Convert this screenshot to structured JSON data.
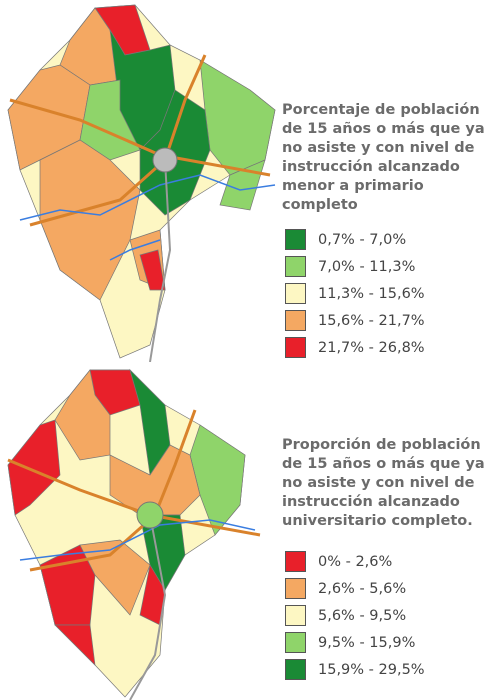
{
  "maps": [
    {
      "title_lines": [
        "Porcentaje de población",
        "de 15 años o más que ya",
        "no asiste y con nivel de",
        "instrucción alcanzado",
        "menor a primario",
        "completo"
      ],
      "legend": [
        {
          "label": "0,7% - 7,0%",
          "color": "#1a8a35"
        },
        {
          "label": "7,0% - 11,3%",
          "color": "#8fd46a"
        },
        {
          "label": "11,3% - 15,6%",
          "color": "#fdf7c3"
        },
        {
          "label": "15,6% - 21,7%",
          "color": "#f4a862"
        },
        {
          "label": "21,7% - 26,8%",
          "color": "#e8202a"
        }
      ]
    },
    {
      "title_lines": [
        "Proporción de población",
        "de 15 años o más que ya",
        "no asiste y con nivel de",
        "instrucción alcanzado",
        "universitario completo."
      ],
      "legend": [
        {
          "label": "0% - 2,6%",
          "color": "#e8202a"
        },
        {
          "label": "2,6% - 5,6%",
          "color": "#f4a862"
        },
        {
          "label": "5,6% - 9,5%",
          "color": "#fdf7c3"
        },
        {
          "label": "9,5% - 15,9%",
          "color": "#8fd46a"
        },
        {
          "label": "15,9% - 29,5%",
          "color": "#1a8a35"
        }
      ]
    }
  ]
}
